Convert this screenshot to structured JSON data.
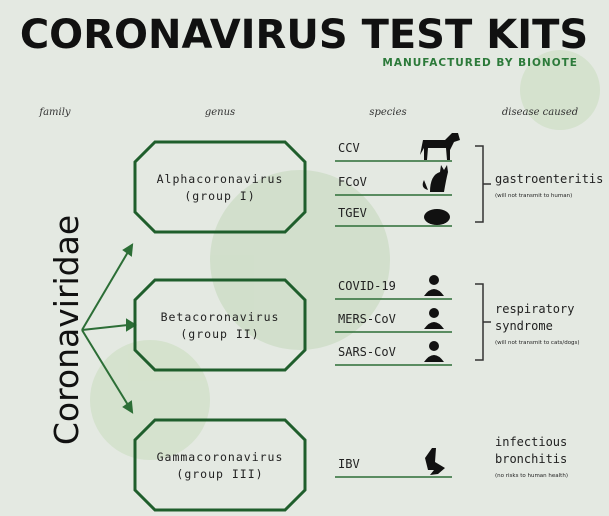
{
  "header": {
    "title": "CORONAVIRUS TEST KITS",
    "subtitle": "MANUFACTURED BY BIONOTE"
  },
  "columns": [
    "family",
    "genus",
    "species",
    "disease caused"
  ],
  "family": "Coronaviridae",
  "groups": [
    {
      "genus": [
        "Alphacoronavirus",
        "(group I)"
      ],
      "species": [
        "CCV",
        "FCoV",
        "TGEV"
      ],
      "disease": [
        "gastroenteritis"
      ],
      "note": "(will not transmit to human)"
    },
    {
      "genus": [
        "Betacoronavirus",
        "(group II)"
      ],
      "species": [
        "COVID-19",
        "MERS-CoV",
        "SARS-CoV"
      ],
      "disease": [
        "respiratory",
        "syndrome"
      ],
      "note": "(will not transmit to cats/dogs)"
    },
    {
      "genus": [
        "Gammacoronavirus",
        "(group III)"
      ],
      "species": [
        "IBV"
      ],
      "disease": [
        "infectious",
        "bronchitis"
      ],
      "note": "(no risks to human health)"
    }
  ]
}
